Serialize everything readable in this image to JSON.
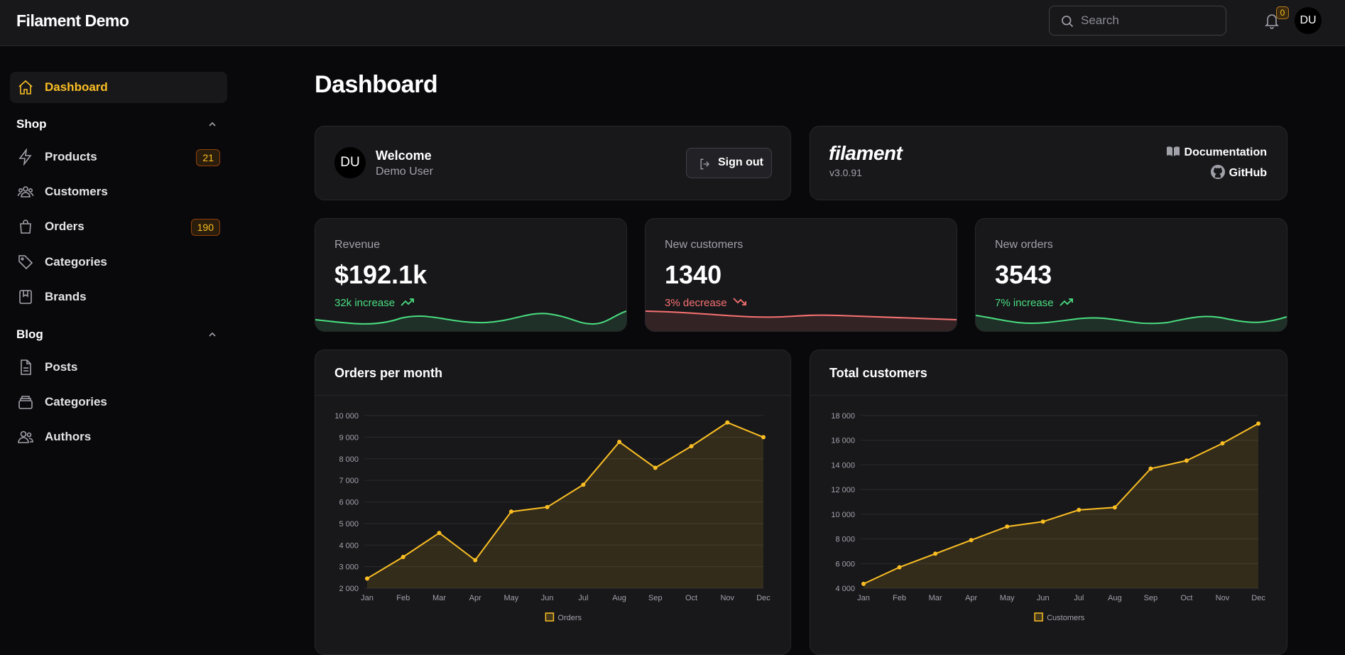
{
  "app": {
    "title": "Filament Demo"
  },
  "topbar": {
    "search_placeholder": "Search",
    "notifications_count": "0",
    "avatar_initials": "DU"
  },
  "sidebar": {
    "dashboard": {
      "label": "Dashboard"
    },
    "groups": [
      {
        "label": "Shop"
      },
      {
        "label": "Blog"
      }
    ],
    "shop_items": [
      {
        "label": "Products",
        "badge": "21",
        "icon": "bolt-icon"
      },
      {
        "label": "Customers",
        "icon": "users-icon"
      },
      {
        "label": "Orders",
        "badge": "190",
        "icon": "shopping-bag-icon"
      },
      {
        "label": "Categories",
        "icon": "tag-icon"
      },
      {
        "label": "Brands",
        "icon": "bookmark-square-icon"
      }
    ],
    "blog_items": [
      {
        "label": "Posts",
        "icon": "document-icon"
      },
      {
        "label": "Categories",
        "icon": "rectangle-stack-icon"
      },
      {
        "label": "Authors",
        "icon": "user-group-icon"
      }
    ]
  },
  "page": {
    "title": "Dashboard"
  },
  "account_widget": {
    "initials": "DU",
    "welcome": "Welcome",
    "user": "Demo User",
    "sign_out": "Sign out"
  },
  "filament_widget": {
    "logo": "filament",
    "version": "v3.0.91",
    "documentation": "Documentation",
    "github": "GitHub"
  },
  "stats": [
    {
      "label": "Revenue",
      "value": "$192.1k",
      "trend": "32k increase",
      "direction": "up",
      "color": "#4ade80"
    },
    {
      "label": "New customers",
      "value": "1340",
      "trend": "3% decrease",
      "direction": "down",
      "color": "#f87171"
    },
    {
      "label": "New orders",
      "value": "3543",
      "trend": "7% increase",
      "direction": "up",
      "color": "#4ade80"
    }
  ],
  "chart_data": [
    {
      "type": "line",
      "title": "Orders per month",
      "categories": [
        "Jan",
        "Feb",
        "Mar",
        "Apr",
        "May",
        "Jun",
        "Jul",
        "Aug",
        "Sep",
        "Oct",
        "Nov",
        "Dec"
      ],
      "series": [
        {
          "name": "Orders",
          "values": [
            2450,
            3450,
            4560,
            3300,
            5550,
            5760,
            6800,
            8780,
            7580,
            8580,
            9680,
            9000
          ]
        }
      ],
      "ylim": [
        2000,
        10000
      ],
      "yticks": [
        "2 000",
        "3 000",
        "4 000",
        "5 000",
        "6 000",
        "7 000",
        "8 000",
        "9 000",
        "10 000"
      ],
      "grid": true,
      "legend": "bottom",
      "color": "#fbbf24"
    },
    {
      "type": "line",
      "title": "Total customers",
      "categories": [
        "Jan",
        "Feb",
        "Mar",
        "Apr",
        "May",
        "Jun",
        "Jul",
        "Aug",
        "Sep",
        "Oct",
        "Nov",
        "Dec"
      ],
      "series": [
        {
          "name": "Customers",
          "values": [
            4350,
            5700,
            6800,
            7900,
            9000,
            9400,
            10350,
            10550,
            13700,
            14350,
            15750,
            17350
          ]
        }
      ],
      "ylim": [
        4000,
        18000
      ],
      "yticks": [
        "4 000",
        "6 000",
        "8 000",
        "10 000",
        "12 000",
        "14 000",
        "16 000",
        "18 000"
      ],
      "grid": true,
      "legend": "bottom",
      "color": "#fbbf24"
    }
  ]
}
